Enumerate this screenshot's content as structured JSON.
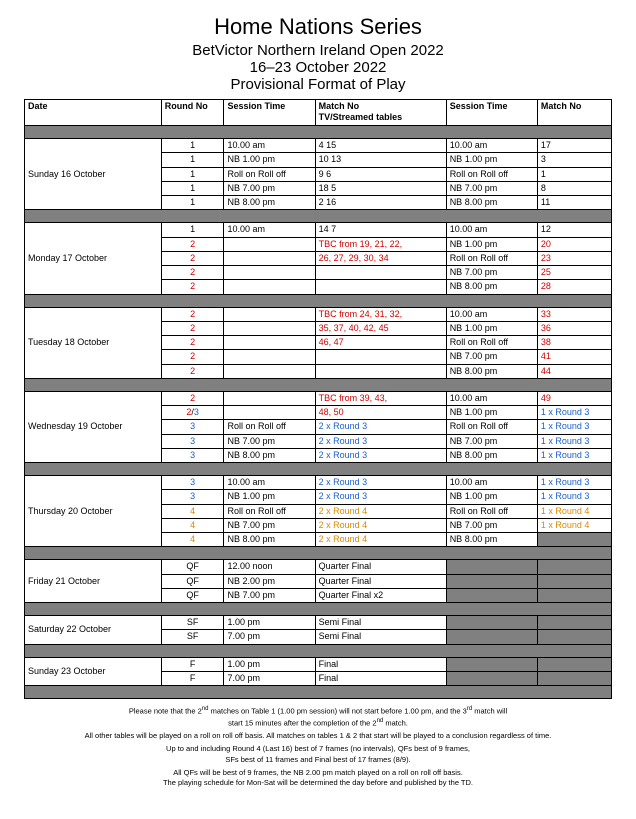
{
  "header": {
    "line1": "Home Nations Series",
    "line2": "BetVictor Northern Ireland Open 2022",
    "line3": "16–23 October 2022",
    "line4": "Provisional Format of Play"
  },
  "columns": {
    "date": "Date",
    "round": "Round No",
    "session1": "Session Time",
    "match1a": "Match No",
    "match1b": "TV/Streamed tables",
    "session2": "Session Time",
    "match2": "Match No"
  },
  "days": [
    {
      "date": "Sunday 16 October",
      "rows": [
        {
          "round": "1",
          "s1": "10.00 am",
          "m1": "4 15",
          "s2": "10.00 am",
          "m2": "17"
        },
        {
          "round": "1",
          "s1": "NB 1.00 pm",
          "m1": "10 13",
          "s2": "NB 1.00 pm",
          "m2": "3"
        },
        {
          "round": "1",
          "s1": "Roll on Roll off",
          "m1": "9 6",
          "s2": "Roll on Roll off",
          "m2": "1"
        },
        {
          "round": "1",
          "s1": "NB 7.00 pm",
          "m1": "18 5",
          "s2": "NB 7.00 pm",
          "m2": "8"
        },
        {
          "round": "1",
          "s1": "NB 8.00 pm",
          "m1": "2 16",
          "s2": "NB 8.00 pm",
          "m2": "11"
        }
      ]
    },
    {
      "date": "Monday 17 October",
      "rows": [
        {
          "round": "1",
          "s1": "10.00 am",
          "m1": "14 7",
          "s2": "10.00 am",
          "m2": "12"
        },
        {
          "round": "2",
          "rcls": "c-red",
          "m1": "TBC from 19, 21, 22,",
          "m1cls": "c-red",
          "s2": "NB 1.00 pm",
          "m2": "20",
          "m2cls": "c-red"
        },
        {
          "round": "2",
          "rcls": "c-red",
          "m1": "26, 27, 29, 30, 34",
          "m1cls": "c-red",
          "s2": "Roll on Roll off",
          "m2": "23",
          "m2cls": "c-red"
        },
        {
          "round": "2",
          "rcls": "c-red",
          "s2": "NB 7.00 pm",
          "m2": "25",
          "m2cls": "c-red"
        },
        {
          "round": "2",
          "rcls": "c-red",
          "s2": "NB 8.00 pm",
          "m2": "28",
          "m2cls": "c-red"
        }
      ]
    },
    {
      "date": "Tuesday 18 October",
      "rows": [
        {
          "round": "2",
          "rcls": "c-red",
          "m1": "TBC from 24, 31, 32,",
          "m1cls": "c-red",
          "s2": "10.00 am",
          "m2": "33",
          "m2cls": "c-red"
        },
        {
          "round": "2",
          "rcls": "c-red",
          "m1": "35, 37, 40, 42, 45",
          "m1cls": "c-red",
          "s2": "NB 1.00 pm",
          "m2": "36",
          "m2cls": "c-red"
        },
        {
          "round": "2",
          "rcls": "c-red",
          "m1": "46, 47",
          "m1cls": "c-red",
          "s2": "Roll on Roll off",
          "m2": "38",
          "m2cls": "c-red"
        },
        {
          "round": "2",
          "rcls": "c-red",
          "s2": "NB 7.00 pm",
          "m2": "41",
          "m2cls": "c-red"
        },
        {
          "round": "2",
          "rcls": "c-red",
          "s2": "NB 8.00 pm",
          "m2": "44",
          "m2cls": "c-red"
        }
      ]
    },
    {
      "date": "Wednesday 19 October",
      "rows": [
        {
          "round": "2",
          "rcls": "c-red",
          "m1": "TBC from 39, 43,",
          "m1cls": "c-red",
          "s2": "10.00 am",
          "m2": "49",
          "m2cls": "c-red"
        },
        {
          "round_html": "<span class=\"c-red\">2</span>/<span class=\"c-blue\">3</span>",
          "m1": "48, 50",
          "m1cls": "c-red",
          "s2": "NB 1.00 pm",
          "m2": "1 x Round 3",
          "m2cls": "c-blue"
        },
        {
          "round": "3",
          "rcls": "c-blue",
          "s1": "Roll on Roll off",
          "m1": "2 x Round 3",
          "m1cls": "c-blue",
          "s2": "Roll on Roll off",
          "m2": "1 x Round 3",
          "m2cls": "c-blue"
        },
        {
          "round": "3",
          "rcls": "c-blue",
          "s1": "NB 7.00 pm",
          "m1": "2 x Round 3",
          "m1cls": "c-blue",
          "s2": "NB 7.00 pm",
          "m2": "1 x Round 3",
          "m2cls": "c-blue"
        },
        {
          "round": "3",
          "rcls": "c-blue",
          "s1": "NB 8.00 pm",
          "m1": "2 x Round 3",
          "m1cls": "c-blue",
          "s2": "NB 8.00 pm",
          "m2": "1 x Round 3",
          "m2cls": "c-blue"
        }
      ]
    },
    {
      "date": "Thursday 20 October",
      "rows": [
        {
          "round": "3",
          "rcls": "c-blue",
          "s1": "10.00 am",
          "m1": "2 x Round 3",
          "m1cls": "c-blue",
          "s2": "10.00 am",
          "m2": "1 x Round 3",
          "m2cls": "c-blue"
        },
        {
          "round": "3",
          "rcls": "c-blue",
          "s1": "NB 1.00 pm",
          "m1": "2 x Round 3",
          "m1cls": "c-blue",
          "s2": "NB 1.00 pm",
          "m2": "1 x Round 3",
          "m2cls": "c-blue"
        },
        {
          "round": "4",
          "rcls": "c-orange",
          "s1": "Roll on Roll off",
          "m1": "2 x Round 4",
          "m1cls": "c-orange",
          "s2": "Roll on Roll off",
          "m2": "1 x Round 4",
          "m2cls": "c-orange"
        },
        {
          "round": "4",
          "rcls": "c-orange",
          "s1": "NB 7.00 pm",
          "m1": "2 x Round 4",
          "m1cls": "c-orange",
          "s2": "NB 7.00 pm",
          "m2": "1 x Round 4",
          "m2cls": "c-orange"
        },
        {
          "round": "4",
          "rcls": "c-orange",
          "s1": "NB 8.00 pm",
          "m1": "2 x Round 4",
          "m1cls": "c-orange",
          "s2": "NB 8.00 pm",
          "m2dark": true
        }
      ]
    },
    {
      "date": "Friday 21 October",
      "rows": [
        {
          "round": "QF",
          "s1": "12.00 noon",
          "m1": "Quarter Final",
          "s2dark": true,
          "m2dark": true
        },
        {
          "round": "QF",
          "s1": "NB 2.00 pm",
          "m1": "Quarter Final",
          "s2dark": true,
          "m2dark": true
        },
        {
          "round": "QF",
          "s1": "NB 7.00 pm",
          "m1": "Quarter Final x2",
          "s2dark": true,
          "m2dark": true
        }
      ]
    },
    {
      "date": "Saturday 22 October",
      "rows": [
        {
          "round": "SF",
          "s1": "1.00 pm",
          "m1": "Semi Final",
          "s2dark": true,
          "m2dark": true
        },
        {
          "round": "SF",
          "s1": "7.00 pm",
          "m1": "Semi Final",
          "s2dark": true,
          "m2dark": true
        }
      ]
    },
    {
      "date": "Sunday 23 October",
      "rows": [
        {
          "round": "F",
          "s1": "1.00 pm",
          "m1": "Final",
          "s2dark": true,
          "m2dark": true
        },
        {
          "round": "F",
          "s1": "7.00 pm",
          "m1": "Final",
          "s2dark": true,
          "m2dark": true
        }
      ]
    }
  ],
  "notes": [
    "Please note that the 2<sup>nd</sup> matches on Table 1 (1.00 pm session) will not start before 1.00 pm, and the 3<sup>rd</sup> match will<br>start 15 minutes after the completion of the 2<sup>nd</sup> match.",
    "All other tables will be played on a roll on roll off basis.  All matches on tables 1 & 2 that start will be played to a conclusion regardless of time.",
    "Up to and including Round 4 (Last 16) best of 7 frames (no intervals), QFs best of 9 frames,<br>SFs best of 11 frames and Final best of 17 frames (8/9).",
    "All QFs will be best of 9 frames, the NB 2.00 pm match played on a roll on roll off basis.<br>The playing schedule for Mon-Sat will be determined the day before and published by the TD."
  ],
  "colwidths": [
    "120",
    "55",
    "80",
    "115",
    "80",
    "65"
  ]
}
